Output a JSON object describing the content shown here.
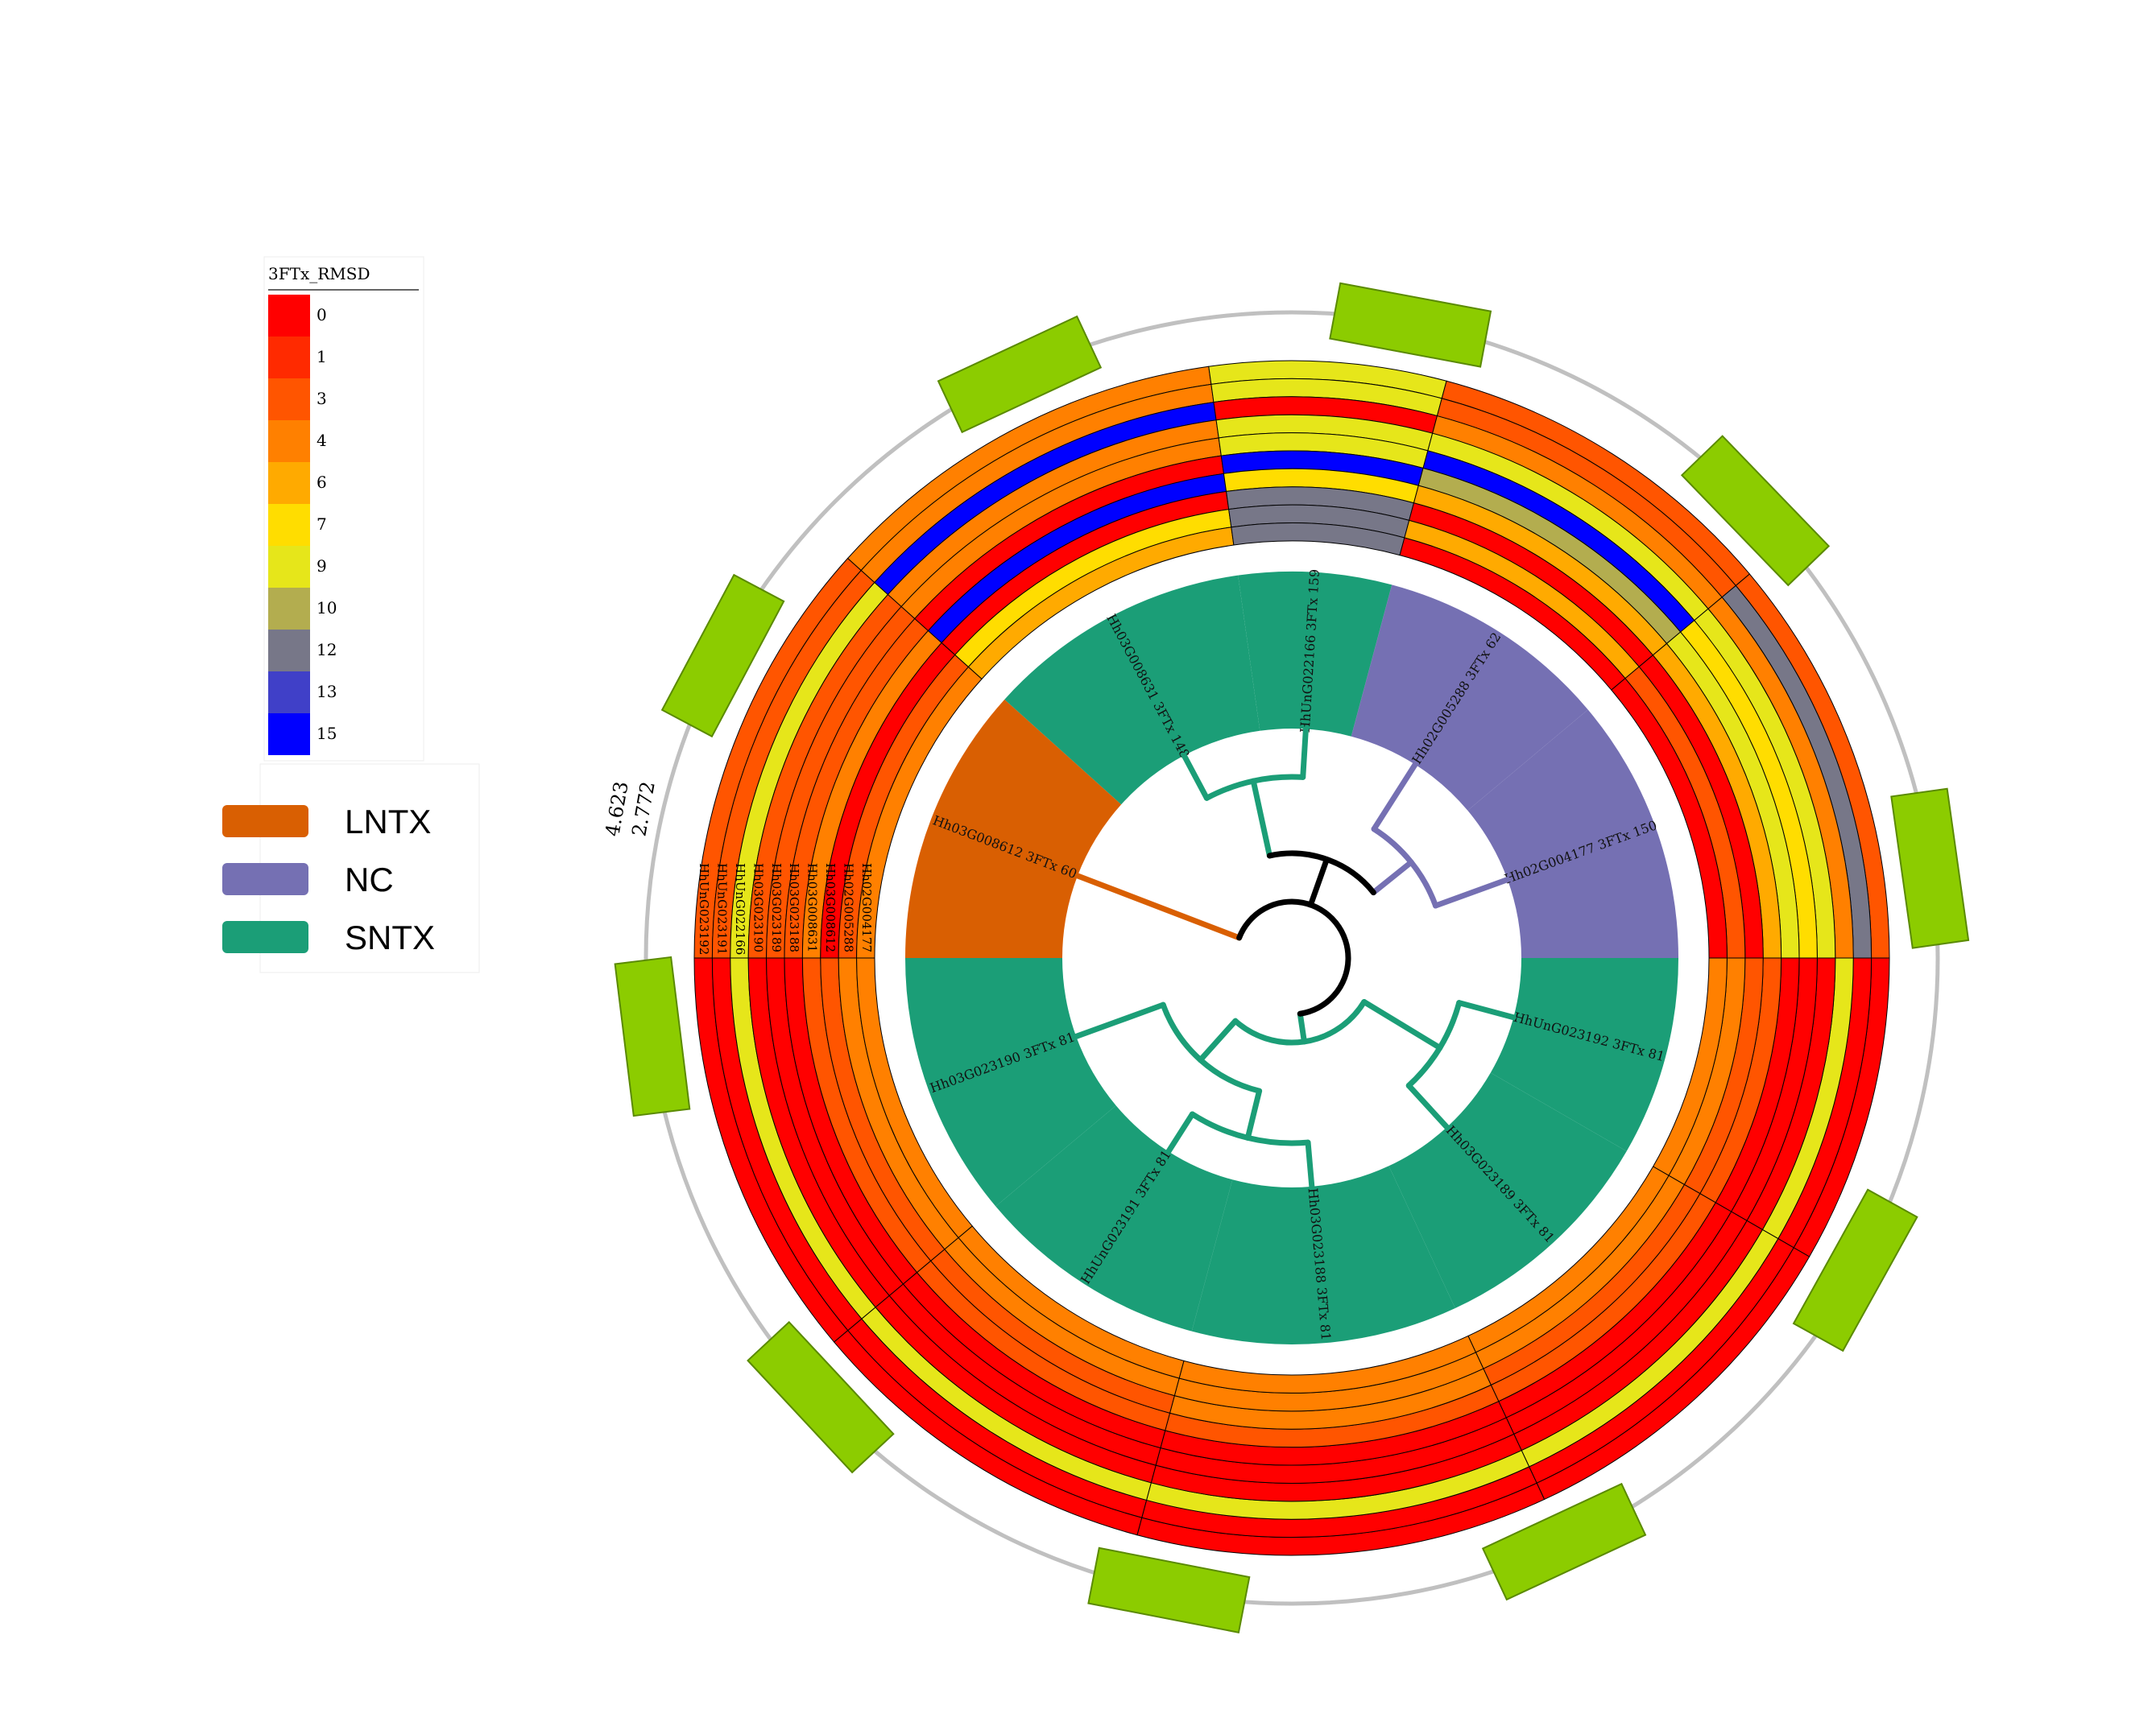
{
  "legend_heat": {
    "title": "3FTx_RMSD",
    "entries": [
      {
        "value": 0,
        "color": "#ff0000"
      },
      {
        "value": 1,
        "color": "#ff2a00"
      },
      {
        "value": 3,
        "color": "#ff5500"
      },
      {
        "value": 4,
        "color": "#ff8000"
      },
      {
        "value": 6,
        "color": "#ffaa00"
      },
      {
        "value": 7,
        "color": "#ffdd00"
      },
      {
        "value": 9,
        "color": "#e6e61a"
      },
      {
        "value": 10,
        "color": "#b3ad4f"
      },
      {
        "value": 12,
        "color": "#777788"
      },
      {
        "value": 13,
        "color": "#4040c8"
      },
      {
        "value": 15,
        "color": "#0000ff"
      }
    ]
  },
  "legend_groups": [
    {
      "label": "LNTX",
      "color": "#d95f02"
    },
    {
      "label": "NC",
      "color": "#7570b3"
    },
    {
      "label": "SNTX",
      "color": "#1b9e77"
    }
  ],
  "scale_labels": [
    "4.623",
    "2.772"
  ],
  "leaves": [
    {
      "label": "Hh03G008612 3FTx 60",
      "color": "#d95f02"
    },
    {
      "label": "Hh03G008631 3FTx 148",
      "color": "#1b9e77"
    },
    {
      "label": "HhUnG022166 3FTx 159",
      "color": "#1b9e77"
    },
    {
      "label": "Hh02G005288 3FTx 62",
      "color": "#7570b3"
    },
    {
      "label": "Hh02G004177 3FTx 150",
      "color": "#7570b3"
    },
    {
      "label": "HhUnG023192 3FTx 81",
      "color": "#1b9e77"
    },
    {
      "label": "Hh03G023189 3FTx 81",
      "color": "#1b9e77"
    },
    {
      "label": "Hh03G023188 3FTx 81",
      "color": "#1b9e77"
    },
    {
      "label": "HhUnG023191 3FTx 81",
      "color": "#1b9e77"
    },
    {
      "label": "Hh03G023190 3FTx 81",
      "color": "#1b9e77"
    }
  ],
  "heatmap": {
    "rows": [
      "HhUnG023192",
      "HhUnG023191",
      "HhUnG022166",
      "Hh03G023190",
      "Hh03G023189",
      "Hh03G023188",
      "Hh03G008631",
      "Hh03G008612",
      "Hh02G005288",
      "Hh02G004177"
    ],
    "values": [
      [
        3,
        4,
        9,
        3,
        3,
        0,
        0,
        0,
        0,
        0
      ],
      [
        3,
        4,
        9,
        3,
        12,
        0,
        0,
        0,
        0,
        0
      ],
      [
        9,
        15,
        0,
        4,
        4,
        9,
        9,
        9,
        9,
        9
      ],
      [
        3,
        4,
        9,
        9,
        9,
        0,
        0,
        0,
        0,
        0
      ],
      [
        3,
        4,
        9,
        15,
        7,
        0,
        0,
        0,
        0,
        0
      ],
      [
        3,
        0,
        15,
        10,
        9,
        0,
        0,
        0,
        0,
        0
      ],
      [
        4,
        15,
        7,
        6,
        6,
        3,
        3,
        3,
        3,
        3
      ],
      [
        0,
        0,
        12,
        0,
        0,
        3,
        3,
        4,
        3,
        3
      ],
      [
        3,
        7,
        12,
        6,
        3,
        4,
        4,
        4,
        4,
        4
      ],
      [
        4,
        6,
        12,
        0,
        0,
        4,
        4,
        4,
        4,
        4
      ]
    ]
  }
}
